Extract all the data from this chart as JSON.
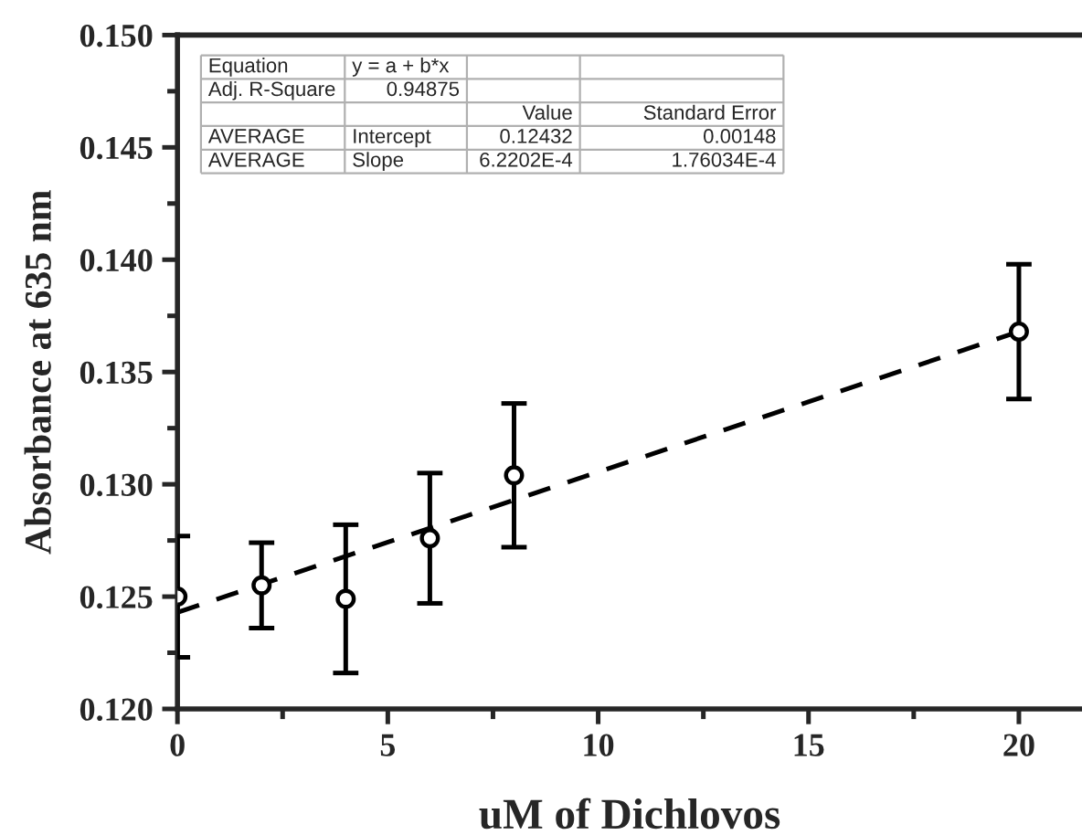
{
  "chart_data": {
    "type": "scatter",
    "xlabel": "uM of Dichlovos",
    "ylabel": "Absorbance at 635 nm",
    "x": [
      0,
      2,
      4,
      6,
      8,
      20
    ],
    "series": [
      {
        "color": "#000000",
        "marker": "circle",
        "values": [
          0.125,
          0.1255,
          0.1249,
          0.1276,
          0.1304,
          0.1368
        ],
        "errors": [
          0.0027,
          0.0019,
          0.0033,
          0.0029,
          0.0032,
          0.003
        ]
      },
      {
        "type": "line",
        "color": "#000000",
        "line_style": "dashed",
        "marker": "none",
        "x": [
          0,
          20
        ],
        "values": [
          0.1243,
          0.1368
        ]
      }
    ],
    "xlim": [
      0,
      21.5
    ],
    "xticks": [
      0,
      5,
      10,
      15,
      20
    ],
    "ylim": [
      0.12,
      0.15
    ],
    "yticks": [
      {
        "value": 0.12,
        "label": "0.120"
      },
      {
        "value": 0.125,
        "label": "0.125"
      },
      {
        "value": 0.13,
        "label": "0.130"
      },
      {
        "value": 0.135,
        "label": "0.135"
      },
      {
        "value": 0.14,
        "label": "0.140"
      },
      {
        "value": 0.145,
        "label": "0.145"
      },
      {
        "value": 0.15,
        "label": "0.150"
      }
    ],
    "grid": false,
    "legend": false,
    "annotations": [
      "Equation",
      "y = a + b*x",
      "Adj. R-Square",
      "0.94875",
      "Value",
      "Standard Error",
      "AVERAGE",
      "Intercept",
      "0.12432",
      "0.00148",
      "AVERAGE",
      "Slope",
      "6.2202E-4",
      "1.76034E-4"
    ]
  }
}
